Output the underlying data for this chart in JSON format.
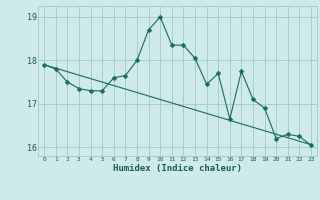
{
  "xlabel": "Humidex (Indice chaleur)",
  "ylabel": "",
  "bg_color": "#ceeaea",
  "grid_color": "#a8cccc",
  "line_color": "#1a6b5a",
  "line_color2": "#1a6b5a",
  "x_data": [
    0,
    1,
    2,
    3,
    4,
    5,
    6,
    7,
    8,
    9,
    10,
    11,
    12,
    13,
    14,
    15,
    16,
    17,
    18,
    19,
    20,
    21,
    22,
    23
  ],
  "y_jagged": [
    17.9,
    17.8,
    17.5,
    17.35,
    17.3,
    17.3,
    17.6,
    17.65,
    18.0,
    18.7,
    19.0,
    18.35,
    18.35,
    18.05,
    17.45,
    17.7,
    16.65,
    17.75,
    17.1,
    16.9,
    16.2,
    16.3,
    16.25,
    16.05
  ],
  "y_trend": [
    17.9,
    17.82,
    17.74,
    17.66,
    17.58,
    17.5,
    17.42,
    17.34,
    17.26,
    17.18,
    17.1,
    17.02,
    16.94,
    16.86,
    16.78,
    16.7,
    16.62,
    16.54,
    16.46,
    16.38,
    16.3,
    16.22,
    16.14,
    16.06
  ],
  "ylim": [
    15.8,
    19.25
  ],
  "xlim": [
    -0.5,
    23.5
  ],
  "yticks": [
    16,
    17,
    18,
    19
  ],
  "markersize": 2.5,
  "linewidth": 0.8
}
